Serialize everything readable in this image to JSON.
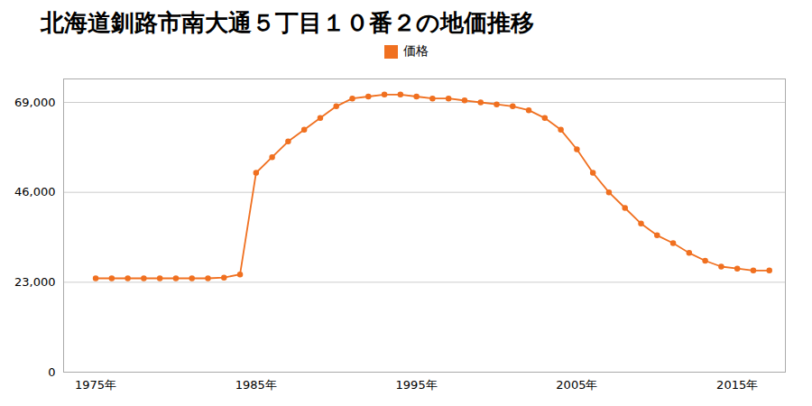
{
  "chart_data": {
    "type": "line",
    "title": "北海道釧路市南大通５丁目１０番２の地価推移",
    "x": [
      1975,
      1976,
      1977,
      1978,
      1979,
      1980,
      1981,
      1982,
      1983,
      1984,
      1985,
      1986,
      1987,
      1988,
      1989,
      1990,
      1991,
      1992,
      1993,
      1994,
      1995,
      1996,
      1997,
      1998,
      1999,
      2000,
      2001,
      2002,
      2003,
      2004,
      2005,
      2006,
      2007,
      2008,
      2009,
      2010,
      2011,
      2012,
      2013,
      2014,
      2015,
      2016,
      2017
    ],
    "series": [
      {
        "name": "価格",
        "color": "#f07020",
        "marker": "circle",
        "values": [
          24000,
          24000,
          24000,
          24000,
          24000,
          24000,
          24000,
          24000,
          24200,
          25000,
          51000,
          55000,
          59000,
          62000,
          65000,
          68000,
          70000,
          70500,
          71000,
          71000,
          70500,
          70000,
          70000,
          69500,
          69000,
          68500,
          68000,
          67000,
          65000,
          62000,
          57000,
          51000,
          46000,
          42000,
          38000,
          35000,
          33000,
          30500,
          28500,
          27000,
          26500,
          26000,
          26000
        ]
      }
    ],
    "xlim": [
      1973,
      2018
    ],
    "xticks": [
      {
        "value": 1975,
        "label": "1975年"
      },
      {
        "value": 1985,
        "label": "1985年"
      },
      {
        "value": 1995,
        "label": "1995年"
      },
      {
        "value": 2005,
        "label": "2005年"
      },
      {
        "value": 2015,
        "label": "2015年"
      }
    ],
    "ylim": [
      0,
      75000
    ],
    "yticks": [
      0,
      {
        "value": 23000,
        "label": "23,000"
      },
      {
        "value": 46000,
        "label": "46,000"
      },
      {
        "value": 69000,
        "label": "69,000"
      }
    ],
    "grid": true,
    "legend": "top"
  }
}
